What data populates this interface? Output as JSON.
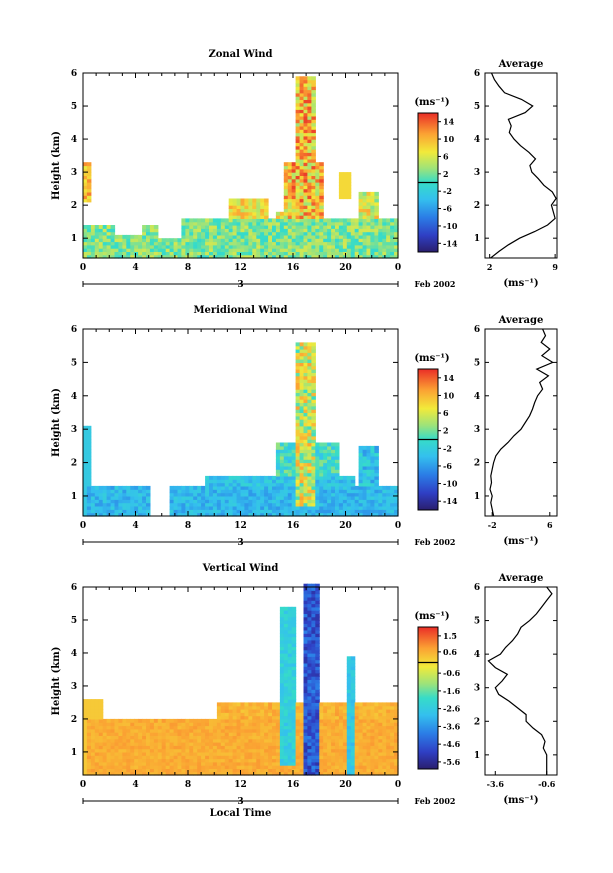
{
  "chart_data": [
    {
      "type": "heatmap",
      "title": "Zonal Wind",
      "ylabel": "Height (km)",
      "xticks": [
        "0",
        "4",
        "8",
        "12",
        "16",
        "20",
        "0"
      ],
      "yticks": [
        "1",
        "2",
        "3",
        "4",
        "5",
        "6"
      ],
      "xlim": [
        0,
        24
      ],
      "ylim": [
        0.4,
        6
      ],
      "day": "3",
      "date_label": "Feb 2002",
      "colorbar": {
        "unit": "(ms⁻¹)",
        "ticks": [
          "14",
          "10",
          "6",
          "2",
          "-2",
          "-6",
          "-10",
          "-14"
        ],
        "range": [
          -16,
          16
        ]
      },
      "profile": {
        "title": "Average",
        "xticks": [
          "2",
          "9"
        ],
        "xlim": [
          1.5,
          9.2
        ],
        "xlabel": "(ms⁻¹)",
        "yticks": [
          "1",
          "2",
          "3",
          "4",
          "5",
          "6"
        ],
        "y": [
          0.4,
          0.6,
          0.8,
          1.0,
          1.2,
          1.4,
          1.6,
          1.8,
          2.0,
          2.2,
          2.4,
          2.6,
          2.8,
          3.0,
          3.2,
          3.4,
          3.6,
          3.8,
          4.0,
          4.2,
          4.4,
          4.6,
          4.8,
          5.0,
          5.2,
          5.4,
          5.6,
          5.8,
          6.0
        ],
        "x": [
          2.1,
          3.0,
          4.0,
          5.2,
          6.8,
          8.2,
          9.0,
          8.8,
          8.6,
          9.1,
          8.7,
          7.8,
          7.2,
          6.5,
          6.3,
          6.9,
          6.2,
          5.3,
          4.6,
          4.1,
          4.3,
          4.0,
          5.8,
          6.6,
          5.4,
          3.6,
          3.0,
          2.5,
          2.2
        ]
      }
    },
    {
      "type": "heatmap",
      "title": "Meridional Wind",
      "ylabel": "Height (km)",
      "xticks": [
        "0",
        "4",
        "8",
        "12",
        "16",
        "20",
        "0"
      ],
      "yticks": [
        "1",
        "2",
        "3",
        "4",
        "5",
        "6"
      ],
      "xlim": [
        0,
        24
      ],
      "ylim": [
        0.4,
        6
      ],
      "day": "3",
      "date_label": "Feb 2002",
      "colorbar": {
        "unit": "(ms⁻¹)",
        "ticks": [
          "14",
          "10",
          "6",
          "2",
          "-2",
          "-6",
          "-10",
          "-14"
        ],
        "range": [
          -16,
          16
        ]
      },
      "profile": {
        "title": "Average",
        "xticks": [
          "-2",
          "6"
        ],
        "xlim": [
          -3,
          7
        ],
        "xlabel": "(ms⁻¹)",
        "yticks": [
          "1",
          "2",
          "3",
          "4",
          "5",
          "6"
        ],
        "y": [
          0.4,
          0.6,
          0.8,
          1.0,
          1.2,
          1.4,
          1.6,
          1.8,
          2.0,
          2.2,
          2.4,
          2.6,
          2.8,
          3.0,
          3.2,
          3.4,
          3.6,
          3.8,
          4.0,
          4.2,
          4.4,
          4.6,
          4.8,
          5.0,
          5.2,
          5.4,
          5.6,
          5.8,
          6.0
        ],
        "x": [
          -1.8,
          -2.0,
          -2.2,
          -2.0,
          -2.3,
          -2.1,
          -2.2,
          -2.0,
          -1.8,
          -1.5,
          -0.8,
          0.2,
          1.0,
          2.0,
          2.6,
          3.2,
          3.6,
          3.9,
          4.3,
          5.0,
          4.6,
          5.8,
          4.2,
          6.4,
          4.9,
          6.0,
          4.8,
          5.4,
          5.0
        ]
      }
    },
    {
      "type": "heatmap",
      "title": "Vertical Wind",
      "ylabel": "Height (km)",
      "xlabel": "Local Time",
      "xticks": [
        "0",
        "4",
        "8",
        "12",
        "16",
        "20",
        "0"
      ],
      "yticks": [
        "1",
        "2",
        "3",
        "4",
        "5",
        "6"
      ],
      "xlim": [
        0,
        24
      ],
      "ylim": [
        0.3,
        6
      ],
      "day": "3",
      "date_label": "Feb 2002",
      "colorbar": {
        "unit": "(ms⁻¹)",
        "ticks": [
          "1.5",
          "0.6",
          "-0.6",
          "-1.6",
          "-2.6",
          "-3.6",
          "-4.6",
          "-5.6"
        ],
        "range": [
          -6,
          2
        ]
      },
      "profile": {
        "title": "Average",
        "xticks": [
          "-3.6",
          "-0.6"
        ],
        "xlim": [
          -4.2,
          0
        ],
        "xlabel": "(ms⁻¹)",
        "yticks": [
          "1",
          "2",
          "3",
          "4",
          "5",
          "6"
        ],
        "y": [
          0.4,
          0.6,
          0.8,
          1.0,
          1.2,
          1.4,
          1.6,
          1.8,
          2.0,
          2.2,
          2.4,
          2.6,
          2.8,
          3.0,
          3.2,
          3.4,
          3.6,
          3.8,
          4.0,
          4.2,
          4.4,
          4.6,
          4.8,
          5.0,
          5.2,
          5.4,
          5.6,
          5.8,
          6.0
        ],
        "x": [
          -0.6,
          -0.6,
          -0.6,
          -0.6,
          -0.8,
          -0.7,
          -0.9,
          -1.4,
          -1.8,
          -1.8,
          -2.3,
          -2.8,
          -3.4,
          -3.6,
          -3.2,
          -2.9,
          -3.6,
          -4.0,
          -3.3,
          -3.0,
          -2.6,
          -2.3,
          -2.1,
          -1.6,
          -1.2,
          -0.9,
          -0.6,
          -0.3,
          -0.6
        ]
      }
    }
  ]
}
